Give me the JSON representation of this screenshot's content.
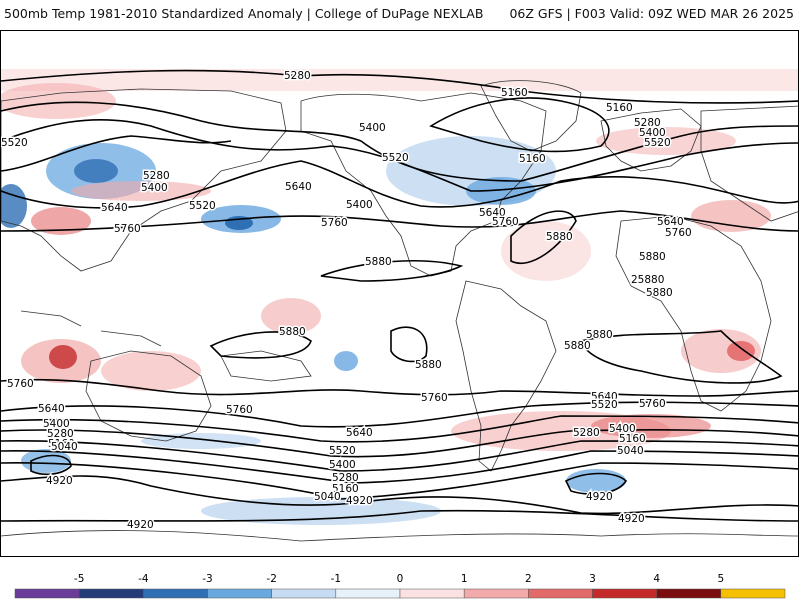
{
  "header": {
    "title_left": "500mb Temp 1981-2010 Standardized Anomaly | College of DuPage NEXLAB",
    "title_right": "06Z GFS | F003 Valid: 09Z WED MAR 26 2025"
  },
  "map": {
    "projection": "cylindrical-equidistant-global",
    "land_outline_color": "#333333",
    "contour_color": "#000000",
    "contour_labels": [
      {
        "text": "5280"
      },
      {
        "text": "5160"
      },
      {
        "text": "5280"
      },
      {
        "text": "5400"
      },
      {
        "text": "5520"
      },
      {
        "text": "5160"
      },
      {
        "text": "5400"
      },
      {
        "text": "5520"
      },
      {
        "text": "5160"
      },
      {
        "text": "5280"
      },
      {
        "text": "5400"
      },
      {
        "text": "5640"
      },
      {
        "text": "5520"
      },
      {
        "text": "5640"
      },
      {
        "text": "5400"
      },
      {
        "text": "5760"
      },
      {
        "text": "5760"
      },
      {
        "text": "5640"
      },
      {
        "text": "5760"
      },
      {
        "text": "5880"
      },
      {
        "text": "5640"
      },
      {
        "text": "5760"
      },
      {
        "text": "5880"
      },
      {
        "text": "5880"
      },
      {
        "text": "25880"
      },
      {
        "text": "5880"
      },
      {
        "text": "5880"
      },
      {
        "text": "5880"
      },
      {
        "text": "5880"
      },
      {
        "text": "5880"
      },
      {
        "text": "5760"
      },
      {
        "text": "5760"
      },
      {
        "text": "5640"
      },
      {
        "text": "5760"
      },
      {
        "text": "5640"
      },
      {
        "text": "5400"
      },
      {
        "text": "5280"
      },
      {
        "text": "5160"
      },
      {
        "text": "5040"
      },
      {
        "text": "4920"
      },
      {
        "text": "5640"
      },
      {
        "text": "5520"
      },
      {
        "text": "5400"
      },
      {
        "text": "5280"
      },
      {
        "text": "5160"
      },
      {
        "text": "5040"
      },
      {
        "text": "4920"
      },
      {
        "text": "5640"
      },
      {
        "text": "5520"
      },
      {
        "text": "5760"
      },
      {
        "text": "5280"
      },
      {
        "text": "5400"
      },
      {
        "text": "5160"
      },
      {
        "text": "5040"
      },
      {
        "text": "4920"
      },
      {
        "text": "4920"
      },
      {
        "text": "4920"
      },
      {
        "text": "5520"
      }
    ]
  },
  "colorbar": {
    "ticks": [
      "-5",
      "-4",
      "-3",
      "-2",
      "-1",
      "0",
      "1",
      "2",
      "3",
      "4",
      "5"
    ],
    "colors": [
      "#6a3d9a",
      "#243c78",
      "#2f6fb4",
      "#6aa8e0",
      "#c6dcf2",
      "#e8f0f8",
      "#fbe1e1",
      "#f2aaaa",
      "#e36a6a",
      "#c42a2a",
      "#7a0d0d",
      "#f5c000"
    ]
  }
}
